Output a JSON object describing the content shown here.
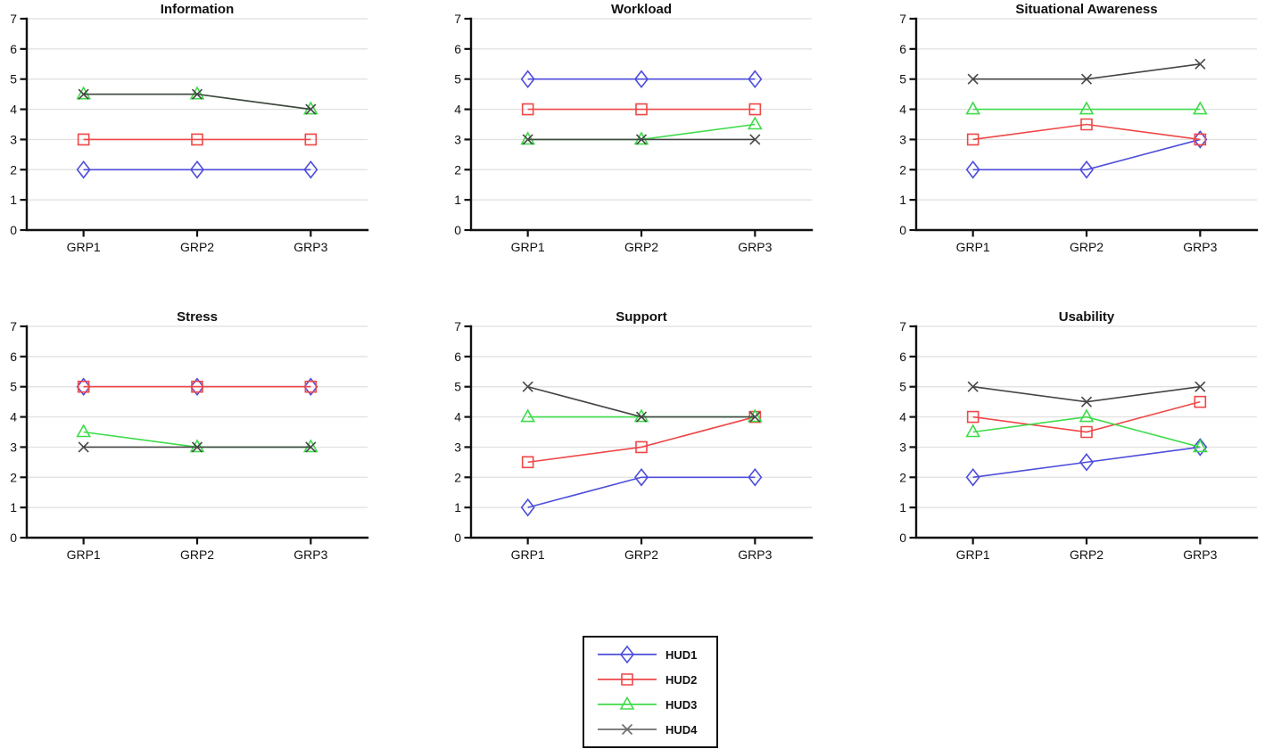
{
  "figure": {
    "background": "#ffffff",
    "axis_color": "#111111",
    "grid_color": "#dfdfdf",
    "tick_label_color": "#111111"
  },
  "chart_data": [
    {
      "type": "line",
      "title": "Information",
      "categories": [
        "GRP1",
        "GRP2",
        "GRP3"
      ],
      "ylim": [
        0,
        7
      ],
      "yticks": [
        0,
        1,
        2,
        3,
        4,
        5,
        6,
        7
      ],
      "grid": true,
      "legend_position": "none",
      "series": [
        {
          "name": "HUD1",
          "marker": "diamond",
          "color": "#4d4ddb",
          "values": [
            2,
            2,
            2
          ]
        },
        {
          "name": "HUD2",
          "marker": "square",
          "color": "#ee4747",
          "values": [
            3,
            3,
            3
          ]
        },
        {
          "name": "HUD3",
          "marker": "triangle",
          "color": "#3fdb4a",
          "values": [
            4.5,
            4.5,
            4
          ]
        },
        {
          "name": "HUD4",
          "marker": "x",
          "color": "#454545",
          "values": [
            4.5,
            4.5,
            4
          ]
        }
      ]
    },
    {
      "type": "line",
      "title": "Workload",
      "categories": [
        "GRP1",
        "GRP2",
        "GRP3"
      ],
      "ylim": [
        0,
        7
      ],
      "yticks": [
        0,
        1,
        2,
        3,
        4,
        5,
        6,
        7
      ],
      "grid": true,
      "legend_position": "none",
      "series": [
        {
          "name": "HUD1",
          "marker": "diamond",
          "color": "#4d4ddb",
          "values": [
            5,
            5,
            5
          ]
        },
        {
          "name": "HUD2",
          "marker": "square",
          "color": "#ee4747",
          "values": [
            4,
            4,
            4
          ]
        },
        {
          "name": "HUD3",
          "marker": "triangle",
          "color": "#3fdb4a",
          "values": [
            3,
            3,
            3.5
          ]
        },
        {
          "name": "HUD4",
          "marker": "x",
          "color": "#454545",
          "values": [
            3,
            3,
            3
          ]
        }
      ]
    },
    {
      "type": "line",
      "title": "Situational Awareness",
      "categories": [
        "GRP1",
        "GRP2",
        "GRP3"
      ],
      "ylim": [
        0,
        7
      ],
      "yticks": [
        0,
        1,
        2,
        3,
        4,
        5,
        6,
        7
      ],
      "grid": true,
      "legend_position": "none",
      "series": [
        {
          "name": "HUD1",
          "marker": "diamond",
          "color": "#4d4ddb",
          "values": [
            2,
            2,
            3
          ]
        },
        {
          "name": "HUD2",
          "marker": "square",
          "color": "#ee4747",
          "values": [
            3,
            3.5,
            3
          ]
        },
        {
          "name": "HUD3",
          "marker": "triangle",
          "color": "#3fdb4a",
          "values": [
            4,
            4,
            4
          ]
        },
        {
          "name": "HUD4",
          "marker": "x",
          "color": "#454545",
          "values": [
            5,
            5,
            5.5
          ]
        }
      ]
    },
    {
      "type": "line",
      "title": "Stress",
      "categories": [
        "GRP1",
        "GRP2",
        "GRP3"
      ],
      "ylim": [
        0,
        7
      ],
      "yticks": [
        0,
        1,
        2,
        3,
        4,
        5,
        6,
        7
      ],
      "grid": true,
      "legend_position": "none",
      "series": [
        {
          "name": "HUD1",
          "marker": "diamond",
          "color": "#4d4ddb",
          "values": [
            5,
            5,
            5
          ]
        },
        {
          "name": "HUD2",
          "marker": "square",
          "color": "#ee4747",
          "values": [
            5,
            5,
            5
          ]
        },
        {
          "name": "HUD3",
          "marker": "triangle",
          "color": "#3fdb4a",
          "values": [
            3.5,
            3,
            3
          ]
        },
        {
          "name": "HUD4",
          "marker": "x",
          "color": "#454545",
          "values": [
            3,
            3,
            3
          ]
        }
      ]
    },
    {
      "type": "line",
      "title": "Support",
      "categories": [
        "GRP1",
        "GRP2",
        "GRP3"
      ],
      "ylim": [
        0,
        7
      ],
      "yticks": [
        0,
        1,
        2,
        3,
        4,
        5,
        6,
        7
      ],
      "grid": true,
      "legend_position": "none",
      "series": [
        {
          "name": "HUD1",
          "marker": "diamond",
          "color": "#4d4ddb",
          "values": [
            1,
            2,
            2
          ]
        },
        {
          "name": "HUD2",
          "marker": "square",
          "color": "#ee4747",
          "values": [
            2.5,
            3,
            4
          ]
        },
        {
          "name": "HUD3",
          "marker": "triangle",
          "color": "#3fdb4a",
          "values": [
            4,
            4,
            4
          ]
        },
        {
          "name": "HUD4",
          "marker": "x",
          "color": "#454545",
          "values": [
            5,
            4,
            4
          ]
        }
      ]
    },
    {
      "type": "line",
      "title": "Usability",
      "categories": [
        "GRP1",
        "GRP2",
        "GRP3"
      ],
      "ylim": [
        0,
        7
      ],
      "yticks": [
        0,
        1,
        2,
        3,
        4,
        5,
        6,
        7
      ],
      "grid": true,
      "legend_position": "none",
      "series": [
        {
          "name": "HUD1",
          "marker": "diamond",
          "color": "#4d4ddb",
          "values": [
            2,
            2.5,
            3
          ]
        },
        {
          "name": "HUD2",
          "marker": "square",
          "color": "#ee4747",
          "values": [
            4,
            3.5,
            4.5
          ]
        },
        {
          "name": "HUD3",
          "marker": "triangle",
          "color": "#3fdb4a",
          "values": [
            3.5,
            4,
            3
          ]
        },
        {
          "name": "HUD4",
          "marker": "x",
          "color": "#454545",
          "values": [
            5,
            4.5,
            5
          ]
        }
      ]
    }
  ],
  "legend": {
    "position": "bottom-center",
    "items": [
      {
        "label": "HUD1",
        "marker": "diamond",
        "color": "#4d4ddb"
      },
      {
        "label": "HUD2",
        "marker": "square",
        "color": "#ee4747"
      },
      {
        "label": "HUD3",
        "marker": "triangle",
        "color": "#3fdb4a"
      },
      {
        "label": "HUD4",
        "marker": "x",
        "color": "#6e6e6e"
      }
    ]
  }
}
